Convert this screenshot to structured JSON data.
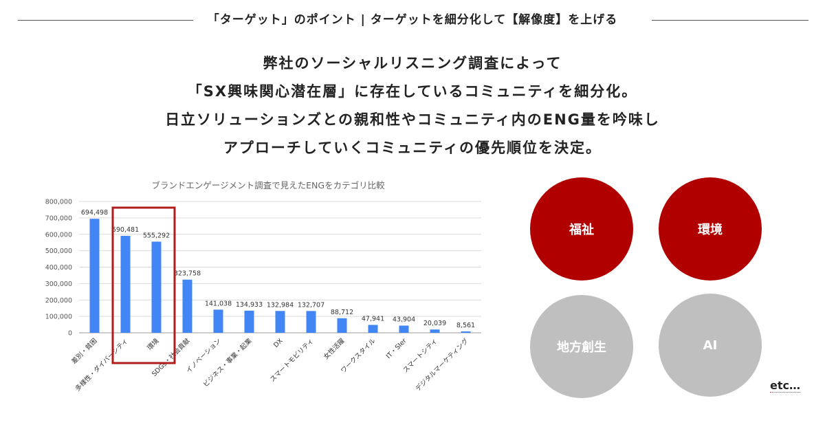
{
  "header": {
    "title": "「ターゲット」のポイント | ターゲットを細分化して【解像度】を上げる"
  },
  "lead_lines": [
    "弊社のソーシャルリスニング調査によって",
    "「SX興味関心潜在層」に存在しているコミュニティを細分化。",
    "日立ソリューションズとの親和性やコミュニティ内のENG量を吟味し",
    "アプローチしていくコミュニティの優先順位を決定。"
  ],
  "chart_data": {
    "type": "bar",
    "title": "ブランドエンゲージメント調査で見えたENGをカテゴリ比較",
    "categories": [
      "差別・貧困",
      "多様性・ダイバーシティ",
      "環境",
      "SDGs・社会貢献",
      "イノベーション",
      "ビジネス・事業・起業",
      "DX",
      "スマートモビリティ",
      "女性活躍",
      "ワークスタイル",
      "IT・SIer",
      "スマートシティ",
      "デジタルマーケティング"
    ],
    "values": [
      694498,
      590481,
      555292,
      323758,
      141038,
      134933,
      132984,
      132707,
      88712,
      47941,
      43904,
      20039,
      8561
    ],
    "value_labels": [
      "694,498",
      "590,481",
      "555,292",
      "323,758",
      "141,038",
      "134,933",
      "132,984",
      "132,707",
      "88,712",
      "47,941",
      "43,904",
      "20,039",
      "8,561"
    ],
    "y_ticks": [
      "0",
      "100,000",
      "200,000",
      "300,000",
      "400,000",
      "500,000",
      "600,000",
      "700,000",
      "800,000"
    ],
    "ylim": [
      0,
      800000
    ],
    "grid": true,
    "bar_color": "#4285f4",
    "highlighted_categories": [
      "多様性・ダイバーシティ",
      "環境"
    ],
    "highlight_color": "#b01c1c"
  },
  "communities": [
    {
      "label": "福祉",
      "color": "#b00000"
    },
    {
      "label": "環境",
      "color": "#b00000"
    },
    {
      "label": "地方創生",
      "color": "#bfbfbf"
    },
    {
      "label": "AI",
      "color": "#bfbfbf"
    }
  ],
  "etc_label": "etc…"
}
